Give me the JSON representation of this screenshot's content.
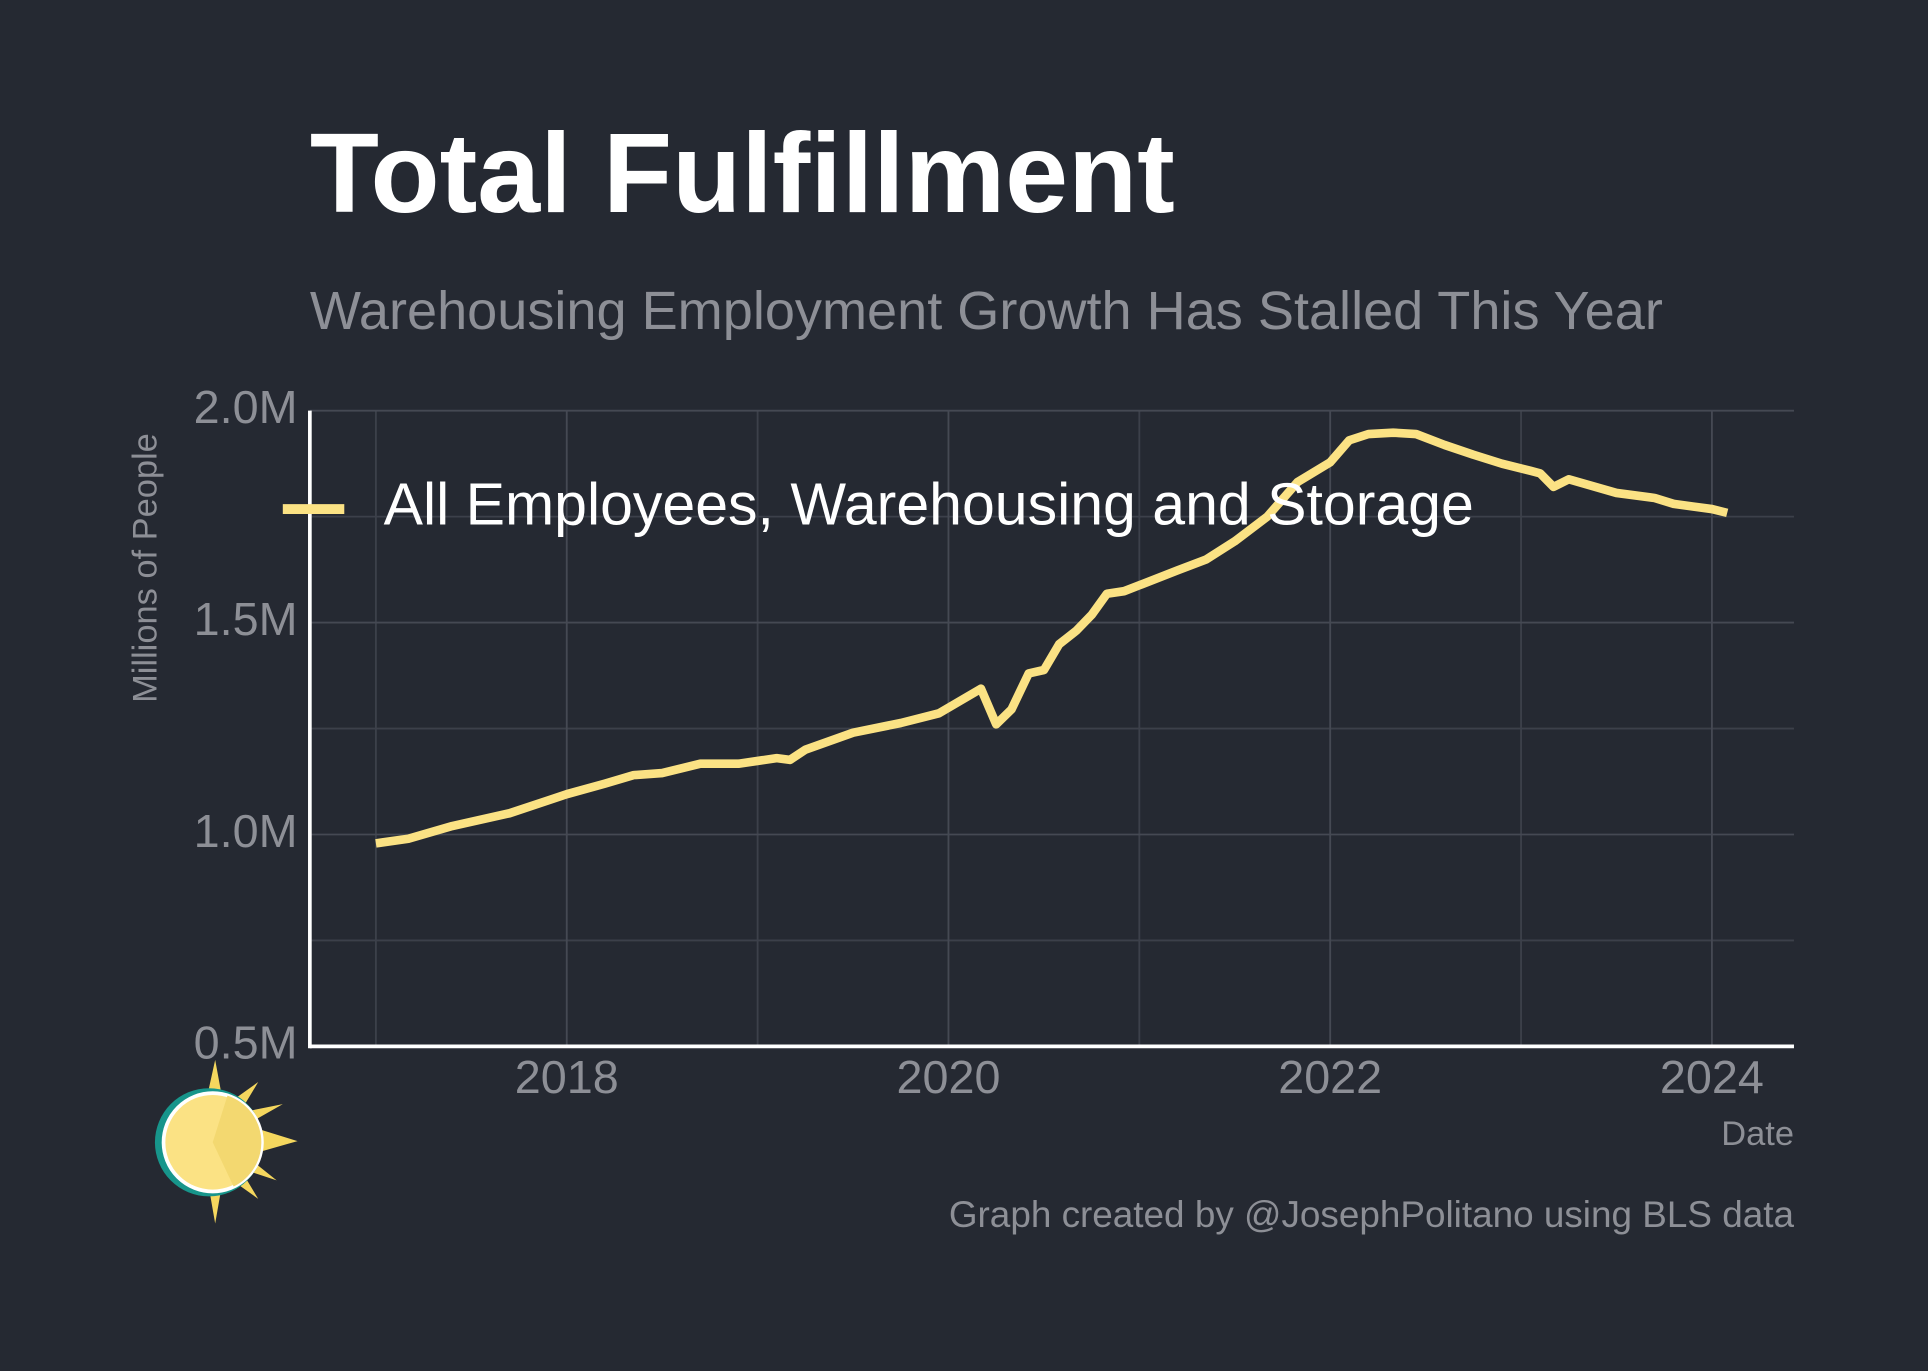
{
  "chart_data": {
    "type": "line",
    "title": "Total Fulfillment",
    "subtitle": "Warehousing Employment Growth Has Stalled This Year",
    "y_label": "Millions of People",
    "x_label": "Date",
    "caption": "Graph created by @JosephPolitano using BLS data",
    "xlim": [
      2016.654,
      2024.43
    ],
    "ylim": [
      0.5,
      2.0
    ],
    "xticks": [
      2018,
      2020,
      2022,
      2024
    ],
    "x_minor_ticks": [
      2017,
      2019,
      2021,
      2023
    ],
    "yticks": [
      {
        "value": 0.5,
        "label": "0.5M"
      },
      {
        "value": 1.0,
        "label": "1.0M"
      },
      {
        "value": 1.5,
        "label": "1.5M"
      },
      {
        "value": 2.0,
        "label": "2.0M"
      }
    ],
    "y_minor_ticks": [
      0.75,
      1.25,
      1.75
    ],
    "grid": true,
    "legend": "top-left",
    "series": [
      {
        "name": "All Employees, Warehousing and Storage",
        "color": "#fbe284",
        "x": [
          2017.0,
          2017.17,
          2017.4,
          2017.7,
          2017.9,
          2018.0,
          2018.2,
          2018.35,
          2018.5,
          2018.7,
          2018.9,
          2019.1,
          2019.17,
          2019.25,
          2019.5,
          2019.75,
          2019.95,
          2020.17,
          2020.25,
          2020.33,
          2020.42,
          2020.5,
          2020.58,
          2020.67,
          2020.75,
          2020.83,
          2020.92,
          2021.0,
          2021.2,
          2021.35,
          2021.5,
          2021.67,
          2021.83,
          2022.0,
          2022.1,
          2022.2,
          2022.33,
          2022.45,
          2022.6,
          2022.75,
          2022.9,
          2023.05,
          2023.1,
          2023.17,
          2023.25,
          2023.5,
          2023.7,
          2023.8,
          2023.9,
          2024.0,
          2024.08
        ],
        "values": [
          0.979,
          0.99,
          1.02,
          1.05,
          1.08,
          1.095,
          1.12,
          1.14,
          1.145,
          1.167,
          1.167,
          1.18,
          1.176,
          1.2,
          1.24,
          1.263,
          1.286,
          1.344,
          1.26,
          1.295,
          1.38,
          1.388,
          1.449,
          1.481,
          1.518,
          1.568,
          1.574,
          1.588,
          1.623,
          1.649,
          1.692,
          1.75,
          1.832,
          1.878,
          1.93,
          1.945,
          1.948,
          1.945,
          1.919,
          1.896,
          1.875,
          1.858,
          1.852,
          1.82,
          1.838,
          1.806,
          1.794,
          1.78,
          1.774,
          1.768,
          1.759
        ]
      }
    ]
  }
}
